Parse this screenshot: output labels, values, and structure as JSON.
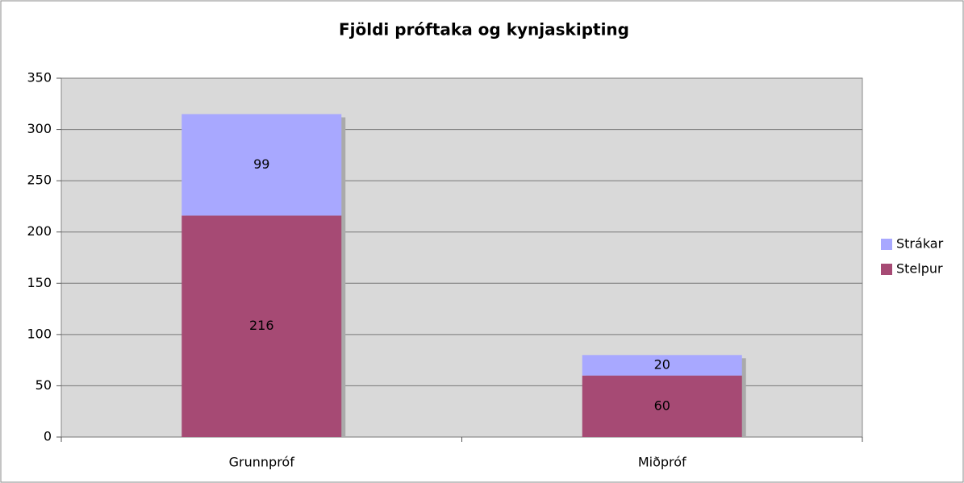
{
  "chart_data": {
    "type": "stacked_bar",
    "title": "Fjöldi próftaka og kynjaskipting",
    "categories": [
      "Grunnpróf",
      "Miðpróf"
    ],
    "series": [
      {
        "name": "Stelpur",
        "color": "#a64a74",
        "values": [
          216,
          60
        ]
      },
      {
        "name": "Strákar",
        "color": "#a8a8ff",
        "values": [
          99,
          20
        ]
      }
    ],
    "ylim": [
      0,
      350
    ],
    "yticks": [
      0,
      50,
      100,
      150,
      200,
      250,
      300,
      350
    ],
    "grid": true,
    "legend": "right"
  }
}
